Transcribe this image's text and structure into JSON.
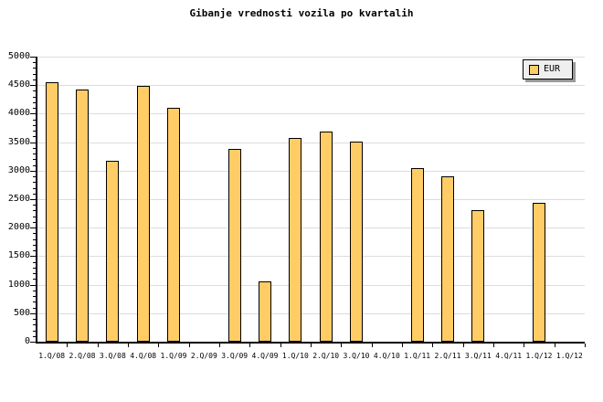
{
  "chart_data": {
    "type": "bar",
    "title": "Gibanje vrednosti vozila po kvartalih",
    "categories": [
      "1.Q/08",
      "2.Q/08",
      "3.Q/08",
      "4.Q/08",
      "1.Q/09",
      "2.Q/09",
      "3.Q/09",
      "4.Q/09",
      "1.Q/10",
      "2.Q/10",
      "3.Q/10",
      "4.Q/10",
      "1.Q/11",
      "2.Q/11",
      "3.Q/11",
      "4.Q/11",
      "1.Q/12",
      "1.Q/12"
    ],
    "series": [
      {
        "name": "EUR",
        "values": [
          4550,
          4430,
          3180,
          4480,
          4100,
          null,
          3380,
          1050,
          3570,
          3690,
          3510,
          null,
          3050,
          2900,
          2310,
          null,
          2430,
          null
        ]
      }
    ],
    "xlabel": "",
    "ylabel": "",
    "ylim": [
      0,
      5000
    ],
    "y_tick_step": 500,
    "y_minor_tick_step": 100,
    "y_tick_labels": [
      "0",
      "500",
      "1000",
      "1500",
      "2000",
      "2500",
      "3000",
      "3500",
      "4000",
      "4500",
      "5000"
    ],
    "grid": "horizontal",
    "legend": {
      "label": "EUR",
      "position": "top-right"
    },
    "colors": {
      "background": "#FFFFFF",
      "bar_fill": "#FFCC66",
      "bar_border": "#000000",
      "gridline": "#DCDCDC",
      "axis": "#000000",
      "text": "#000000",
      "legend_bg": "#EFEFEF",
      "legend_border": "#000000",
      "legend_shadow": "#999999"
    }
  }
}
